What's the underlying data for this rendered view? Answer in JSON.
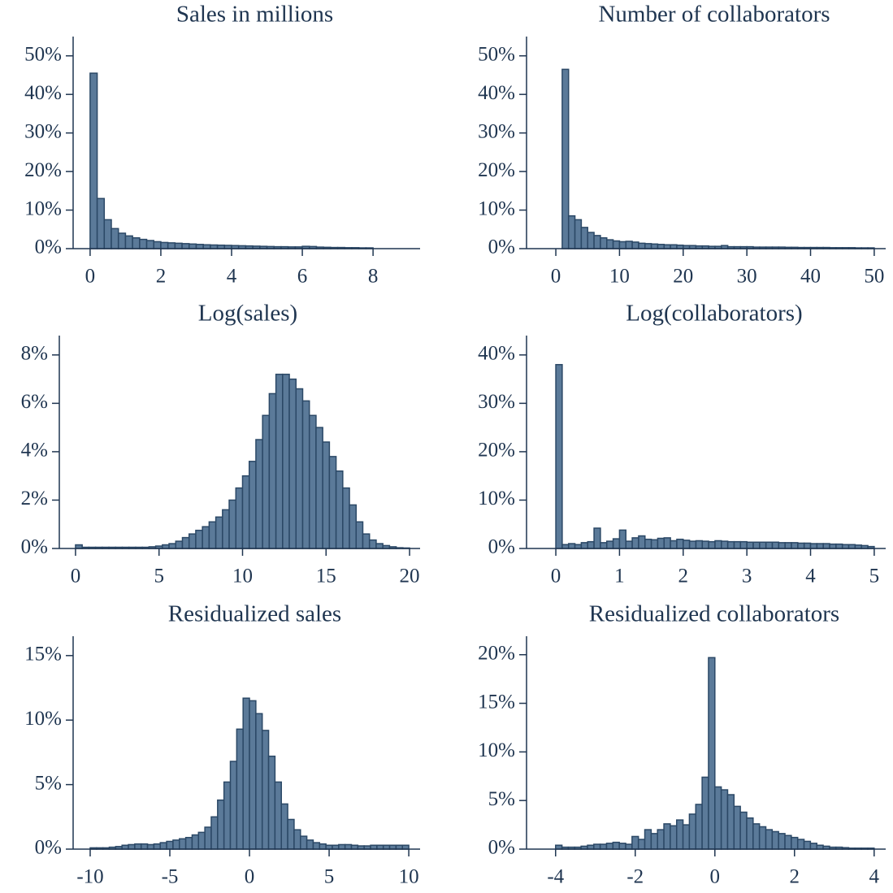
{
  "chart_data": [
    {
      "type": "histogram",
      "title": "Sales in millions",
      "bins": [
        0,
        0.2,
        0.4,
        0.6,
        0.8,
        1,
        1.2,
        1.4,
        1.6,
        1.8,
        2,
        2.2,
        2.4,
        2.6,
        2.8,
        3,
        3.2,
        3.4,
        3.6,
        3.8,
        4,
        4.2,
        4.4,
        4.6,
        4.8,
        5,
        5.2,
        5.4,
        5.6,
        5.8,
        6,
        6.2,
        6.4,
        6.6,
        6.8,
        7,
        7.2,
        7.4,
        7.6,
        7.8,
        8
      ],
      "values": [
        45.5,
        13,
        7.5,
        5.2,
        4,
        3.3,
        2.8,
        2.4,
        2.1,
        1.8,
        1.6,
        1.5,
        1.4,
        1.3,
        1.2,
        1.1,
        1.0,
        0.95,
        0.9,
        0.85,
        0.8,
        0.75,
        0.7,
        0.65,
        0.6,
        0.55,
        0.5,
        0.5,
        0.45,
        0.45,
        0.6,
        0.55,
        0.4,
        0.35,
        0.3,
        0.3,
        0.25,
        0.25,
        0.2,
        0.2
      ],
      "color": "#5b7a99",
      "xlim": [
        -0.48,
        9.33
      ],
      "xticks": [
        0,
        2,
        4,
        6,
        8
      ],
      "ylim": [
        0,
        55
      ],
      "yticks": [
        {
          "value": 0,
          "label": "0%"
        },
        {
          "value": 10,
          "label": "10%"
        },
        {
          "value": 20,
          "label": "20%"
        },
        {
          "value": 30,
          "label": "30%"
        },
        {
          "value": 40,
          "label": "40%"
        },
        {
          "value": 50,
          "label": "50%"
        }
      ]
    },
    {
      "type": "histogram",
      "title": "Number of collaborators",
      "bins": [
        1,
        2,
        3,
        4,
        5,
        6,
        7,
        8,
        9,
        10,
        11,
        12,
        13,
        14,
        15,
        16,
        17,
        18,
        19,
        20,
        21,
        22,
        23,
        24,
        25,
        26,
        27,
        28,
        29,
        30,
        31,
        32,
        33,
        34,
        35,
        36,
        37,
        38,
        39,
        40,
        41,
        42,
        43,
        44,
        45,
        46,
        47,
        48,
        49,
        50
      ],
      "values": [
        46.5,
        8.5,
        7.5,
        5.5,
        4.2,
        3.4,
        2.8,
        2.3,
        2.0,
        1.8,
        1.9,
        1.7,
        1.4,
        1.3,
        1.2,
        1.1,
        1.0,
        1.0,
        0.9,
        0.8,
        0.8,
        0.7,
        0.7,
        0.6,
        0.6,
        0.8,
        0.5,
        0.5,
        0.5,
        0.5,
        0.4,
        0.4,
        0.4,
        0.4,
        0.4,
        0.35,
        0.35,
        0.3,
        0.3,
        0.3,
        0.3,
        0.3,
        0.25,
        0.25,
        0.25,
        0.25,
        0.2,
        0.2,
        0.2
      ],
      "color": "#5b7a99",
      "xlim": [
        -4.6,
        51.8
      ],
      "xticks": [
        0,
        10,
        20,
        30,
        40,
        50
      ],
      "ylim": [
        0,
        55
      ],
      "yticks": [
        {
          "value": 0,
          "label": "0%"
        },
        {
          "value": 10,
          "label": "10%"
        },
        {
          "value": 20,
          "label": "20%"
        },
        {
          "value": 30,
          "label": "30%"
        },
        {
          "value": 40,
          "label": "40%"
        },
        {
          "value": 50,
          "label": "50%"
        }
      ]
    },
    {
      "type": "histogram",
      "title": "Log(sales)",
      "bins": [
        0,
        0.4,
        0.8,
        1.2,
        1.6,
        2,
        2.4,
        2.8,
        3.2,
        3.6,
        4,
        4.4,
        4.8,
        5.2,
        5.6,
        6,
        6.4,
        6.8,
        7.2,
        7.6,
        8,
        8.4,
        8.8,
        9.2,
        9.6,
        10,
        10.4,
        10.8,
        11.2,
        11.6,
        12,
        12.4,
        12.8,
        13.2,
        13.6,
        14,
        14.4,
        14.8,
        15.2,
        15.6,
        16,
        16.4,
        16.8,
        17.2,
        17.6,
        18,
        18.4,
        18.8,
        19.2,
        19.6,
        20
      ],
      "values": [
        0.15,
        0.05,
        0.05,
        0.05,
        0.05,
        0.05,
        0.05,
        0.05,
        0.05,
        0.05,
        0.05,
        0.07,
        0.1,
        0.15,
        0.2,
        0.3,
        0.45,
        0.6,
        0.75,
        0.9,
        1.1,
        1.3,
        1.6,
        2.0,
        2.5,
        3.0,
        3.6,
        4.5,
        5.5,
        6.4,
        7.2,
        7.2,
        7.0,
        6.6,
        6.1,
        5.5,
        5.0,
        4.4,
        3.8,
        3.2,
        2.5,
        1.8,
        1.1,
        0.6,
        0.35,
        0.2,
        0.12,
        0.07,
        0.03,
        0.02
      ],
      "color": "#5b7a99",
      "xlim": [
        -0.97,
        20.63
      ],
      "xticks": [
        0,
        5,
        10,
        15,
        20
      ],
      "ylim": [
        0,
        8.8
      ],
      "yticks": [
        {
          "value": 0,
          "label": "0%"
        },
        {
          "value": 2,
          "label": "2%"
        },
        {
          "value": 4,
          "label": "4%"
        },
        {
          "value": 6,
          "label": "6%"
        },
        {
          "value": 8,
          "label": "8%"
        }
      ]
    },
    {
      "type": "histogram",
      "title": "Log(collaborators)",
      "bins": [
        0,
        0.1,
        0.2,
        0.3,
        0.4,
        0.5,
        0.6,
        0.7,
        0.8,
        0.9,
        1,
        1.1,
        1.2,
        1.3,
        1.4,
        1.5,
        1.6,
        1.7,
        1.8,
        1.9,
        2,
        2.1,
        2.2,
        2.3,
        2.4,
        2.5,
        2.6,
        2.7,
        2.8,
        2.9,
        3,
        3.1,
        3.2,
        3.3,
        3.4,
        3.5,
        3.6,
        3.7,
        3.8,
        3.9,
        4,
        4.1,
        4.2,
        4.3,
        4.4,
        4.5,
        4.6,
        4.7,
        4.8,
        4.9,
        5
      ],
      "values": [
        38,
        0.8,
        1.0,
        0.8,
        1.2,
        1.4,
        4.2,
        1.2,
        1.5,
        2.0,
        3.8,
        1.5,
        2.2,
        2.6,
        1.9,
        1.8,
        2.1,
        2.2,
        1.6,
        1.9,
        1.7,
        1.5,
        1.6,
        1.5,
        1.4,
        1.6,
        1.5,
        1.4,
        1.4,
        1.4,
        1.3,
        1.3,
        1.3,
        1.3,
        1.3,
        1.2,
        1.2,
        1.2,
        1.1,
        1.1,
        1.0,
        1.0,
        1.0,
        0.9,
        0.9,
        0.8,
        0.8,
        0.7,
        0.6,
        0.4
      ],
      "color": "#5b7a99",
      "xlim": [
        -0.46,
        5.18
      ],
      "xticks": [
        0,
        1,
        2,
        3,
        4,
        5
      ],
      "ylim": [
        0,
        44
      ],
      "yticks": [
        {
          "value": 0,
          "label": "0%"
        },
        {
          "value": 10,
          "label": "10%"
        },
        {
          "value": 20,
          "label": "20%"
        },
        {
          "value": 30,
          "label": "30%"
        },
        {
          "value": 40,
          "label": "40%"
        }
      ]
    },
    {
      "type": "histogram",
      "title": "Residualized sales",
      "bins": [
        -10,
        -9.6,
        -9.2,
        -8.8,
        -8.4,
        -8,
        -7.6,
        -7.2,
        -6.8,
        -6.4,
        -6,
        -5.6,
        -5.2,
        -4.8,
        -4.4,
        -4,
        -3.6,
        -3.2,
        -2.8,
        -2.4,
        -2,
        -1.6,
        -1.2,
        -0.8,
        -0.4,
        0,
        0.4,
        0.8,
        1.2,
        1.6,
        2,
        2.4,
        2.8,
        3.2,
        3.6,
        4,
        4.4,
        4.8,
        5.2,
        5.6,
        6,
        6.4,
        6.8,
        7.2,
        7.6,
        8,
        8.4,
        8.8,
        9.2,
        9.6,
        10
      ],
      "values": [
        0.1,
        0.1,
        0.1,
        0.15,
        0.2,
        0.3,
        0.35,
        0.4,
        0.4,
        0.35,
        0.4,
        0.5,
        0.6,
        0.7,
        0.8,
        0.9,
        1.1,
        1.3,
        1.7,
        2.5,
        3.8,
        5.2,
        6.8,
        9.3,
        11.7,
        11.5,
        10.5,
        9.2,
        7.2,
        5.2,
        3.5,
        2.3,
        1.5,
        1.0,
        0.7,
        0.5,
        0.4,
        0.3,
        0.3,
        0.35,
        0.35,
        0.3,
        0.25,
        0.25,
        0.3,
        0.3,
        0.3,
        0.3,
        0.3,
        0.3
      ],
      "color": "#5b7a99",
      "xlim": [
        -11.07,
        10.71
      ],
      "xticks": [
        {
          "value": -10,
          "label": "-10"
        },
        {
          "value": -5,
          "label": "-5"
        },
        0,
        5,
        10
      ],
      "ylim": [
        0,
        16.5
      ],
      "yticks": [
        {
          "value": 0,
          "label": "0%"
        },
        {
          "value": 5,
          "label": "5%"
        },
        {
          "value": 10,
          "label": "10%"
        },
        {
          "value": 15,
          "label": "15%"
        }
      ]
    },
    {
      "type": "histogram",
      "title": "Residualized collaborators",
      "bins": [
        -4,
        -3.84,
        -3.68,
        -3.52,
        -3.36,
        -3.2,
        -3.04,
        -2.88,
        -2.72,
        -2.56,
        -2.4,
        -2.24,
        -2.08,
        -1.92,
        -1.76,
        -1.6,
        -1.44,
        -1.28,
        -1.12,
        -0.96,
        -0.8,
        -0.64,
        -0.48,
        -0.32,
        -0.16,
        0,
        0.16,
        0.32,
        0.48,
        0.64,
        0.8,
        0.96,
        1.12,
        1.28,
        1.44,
        1.6,
        1.76,
        1.92,
        2.08,
        2.24,
        2.4,
        2.56,
        2.72,
        2.88,
        3.04,
        3.2,
        3.36,
        3.52,
        3.68,
        3.84,
        4
      ],
      "values": [
        0.4,
        0.2,
        0.2,
        0.2,
        0.3,
        0.4,
        0.5,
        0.5,
        0.6,
        0.7,
        0.6,
        0.5,
        1.3,
        1.0,
        2.0,
        1.6,
        2.0,
        2.6,
        2.4,
        3.0,
        2.5,
        3.6,
        4.6,
        7.4,
        19.7,
        6.4,
        6.1,
        5.6,
        4.4,
        3.8,
        3.2,
        2.6,
        2.3,
        2.0,
        1.8,
        1.6,
        1.4,
        1.2,
        1.0,
        0.8,
        0.6,
        0.4,
        0.3,
        0.2,
        0.2,
        0.15,
        0.1,
        0.1,
        0.1,
        0.1
      ],
      "color": "#5b7a99",
      "xlim": [
        -4.73,
        4.29
      ],
      "xticks": [
        {
          "value": -4,
          "label": "-4"
        },
        {
          "value": -2,
          "label": "-2"
        },
        0,
        2,
        4
      ],
      "ylim": [
        0,
        21.9
      ],
      "yticks": [
        {
          "value": 0,
          "label": "0%"
        },
        {
          "value": 5,
          "label": "5%"
        },
        {
          "value": 10,
          "label": "10%"
        },
        {
          "value": 15,
          "label": "15%"
        },
        {
          "value": 20,
          "label": "20%"
        }
      ]
    }
  ]
}
